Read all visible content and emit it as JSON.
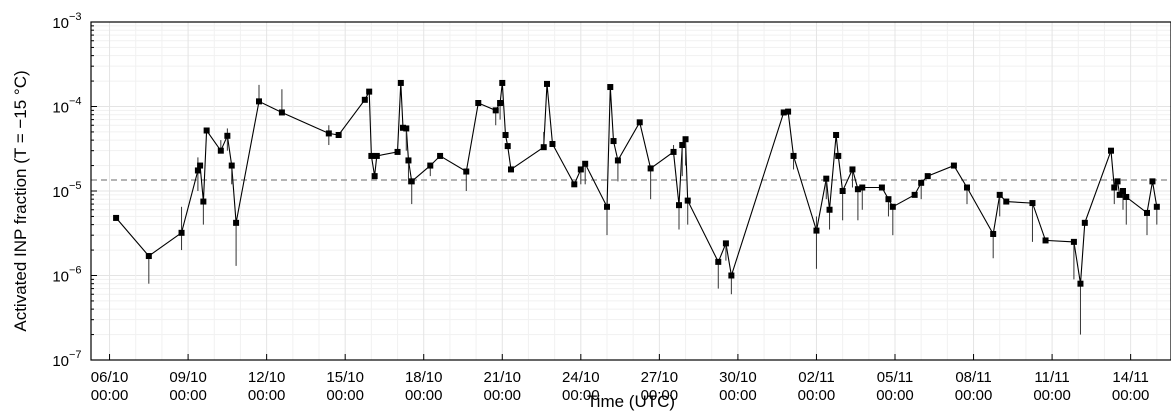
{
  "chart_data": {
    "type": "scatter",
    "xlabel": "Time (UTC)",
    "ylabel": "Activated INP fraction (T = −15 °C)",
    "y_scale": "log",
    "ylim": [
      1e-07,
      0.001
    ],
    "xlim": [
      "2021-10-05T07:00",
      "2021-11-15T13:00"
    ],
    "grid": true,
    "x_tick_labels": [
      {
        "date": "2021-10-06T00:00",
        "line1": "06/10",
        "line2": "00:00"
      },
      {
        "date": "2021-10-09T00:00",
        "line1": "09/10",
        "line2": "00:00"
      },
      {
        "date": "2021-10-12T00:00",
        "line1": "12/10",
        "line2": "00:00"
      },
      {
        "date": "2021-10-15T00:00",
        "line1": "15/10",
        "line2": "00:00"
      },
      {
        "date": "2021-10-18T00:00",
        "line1": "18/10",
        "line2": "00:00"
      },
      {
        "date": "2021-10-21T00:00",
        "line1": "21/10",
        "line2": "00:00"
      },
      {
        "date": "2021-10-24T00:00",
        "line1": "24/10",
        "line2": "00:00"
      },
      {
        "date": "2021-10-27T00:00",
        "line1": "27/10",
        "line2": "00:00"
      },
      {
        "date": "2021-10-30T00:00",
        "line1": "30/10",
        "line2": "00:00"
      },
      {
        "date": "2021-11-02T00:00",
        "line1": "02/11",
        "line2": "00:00"
      },
      {
        "date": "2021-11-05T00:00",
        "line1": "05/11",
        "line2": "00:00"
      },
      {
        "date": "2021-11-08T00:00",
        "line1": "08/11",
        "line2": "00:00"
      },
      {
        "date": "2021-11-11T00:00",
        "line1": "11/11",
        "line2": "00:00"
      },
      {
        "date": "2021-11-14T00:00",
        "line1": "14/11",
        "line2": "00:00"
      }
    ],
    "y_tick_labels": [
      {
        "value": 1e-07,
        "base": "10",
        "exp": "−7"
      },
      {
        "value": 1e-06,
        "base": "10",
        "exp": "−6"
      },
      {
        "value": 1e-05,
        "base": "10",
        "exp": "−5"
      },
      {
        "value": 0.0001,
        "base": "10",
        "exp": "−4"
      },
      {
        "value": 0.001,
        "base": "10",
        "exp": "−3"
      }
    ],
    "reference_line": {
      "y": 1.35e-05,
      "style": "dashed",
      "color": "#888888"
    },
    "series": [
      {
        "marker": "square",
        "color": "#000000",
        "points": [
          {
            "x": "2021-10-06T06:00",
            "y": 4.8e-06
          },
          {
            "x": "2021-10-07T12:00",
            "y": 1.7e-06,
            "lo": 8e-07
          },
          {
            "x": "2021-10-08T18:00",
            "y": 3.2e-06,
            "lo": 2e-06,
            "hi": 6.5e-06
          },
          {
            "x": "2021-10-09T09:00",
            "y": 1.75e-05,
            "lo": 1e-05,
            "hi": 2.5e-05
          },
          {
            "x": "2021-10-09T11:00",
            "y": 2e-05
          },
          {
            "x": "2021-10-09T14:00",
            "y": 7.5e-06,
            "lo": 4e-06
          },
          {
            "x": "2021-10-09T17:00",
            "y": 5.2e-05
          },
          {
            "x": "2021-10-10T06:00",
            "y": 3e-05,
            "hi": 4e-05
          },
          {
            "x": "2021-10-10T12:00",
            "y": 4.5e-05,
            "lo": 3e-05,
            "hi": 5.5e-05
          },
          {
            "x": "2021-10-10T16:00",
            "y": 2e-05,
            "lo": 1.2e-05
          },
          {
            "x": "2021-10-10T20:00",
            "y": 4.2e-06,
            "lo": 1.3e-06
          },
          {
            "x": "2021-10-11T17:00",
            "y": 0.000115,
            "hi": 0.00018
          },
          {
            "x": "2021-10-12T14:00",
            "y": 8.5e-05,
            "hi": 0.00016
          },
          {
            "x": "2021-10-14T09:00",
            "y": 4.8e-05,
            "lo": 3.5e-05,
            "hi": 6e-05
          },
          {
            "x": "2021-10-14T18:00",
            "y": 4.6e-05
          },
          {
            "x": "2021-10-15T18:00",
            "y": 0.00012
          },
          {
            "x": "2021-10-15T22:00",
            "y": 0.00015
          },
          {
            "x": "2021-10-16T00:00",
            "y": 2.6e-05
          },
          {
            "x": "2021-10-16T03:00",
            "y": 1.5e-05
          },
          {
            "x": "2021-10-16T05:00",
            "y": 2.6e-05
          },
          {
            "x": "2021-10-17T00:00",
            "y": 2.9e-05
          },
          {
            "x": "2021-10-17T03:00",
            "y": 0.00019
          },
          {
            "x": "2021-10-17T05:00",
            "y": 5.6e-05
          },
          {
            "x": "2021-10-17T08:00",
            "y": 5.5e-05,
            "lo": 3e-05
          },
          {
            "x": "2021-10-17T10:00",
            "y": 2.3e-05,
            "lo": 1.2e-05
          },
          {
            "x": "2021-10-17T13:00",
            "y": 1.3e-05,
            "lo": 7e-06
          },
          {
            "x": "2021-10-18T06:00",
            "y": 2e-05,
            "lo": 1.5e-05
          },
          {
            "x": "2021-10-18T15:00",
            "y": 2.6e-05
          },
          {
            "x": "2021-10-19T15:00",
            "y": 1.7e-05,
            "lo": 1e-05
          },
          {
            "x": "2021-10-20T02:00",
            "y": 0.00011
          },
          {
            "x": "2021-10-20T18:00",
            "y": 9e-05,
            "lo": 6e-05
          },
          {
            "x": "2021-10-20T22:00",
            "y": 0.00011,
            "lo": 7e-05
          },
          {
            "x": "2021-10-21T00:00",
            "y": 0.00019
          },
          {
            "x": "2021-10-21T03:00",
            "y": 4.6e-05
          },
          {
            "x": "2021-10-21T05:00",
            "y": 3.4e-05
          },
          {
            "x": "2021-10-21T08:00",
            "y": 1.8e-05
          },
          {
            "x": "2021-10-22T14:00",
            "y": 3.3e-05,
            "hi": 5e-05
          },
          {
            "x": "2021-10-22T17:00",
            "y": 0.000185
          },
          {
            "x": "2021-10-22T22:00",
            "y": 3.6e-05
          },
          {
            "x": "2021-10-23T18:00",
            "y": 1.2e-05
          },
          {
            "x": "2021-10-24T00:00",
            "y": 1.8e-05,
            "lo": 1.2e-05
          },
          {
            "x": "2021-10-24T04:00",
            "y": 2.1e-05,
            "lo": 1.2e-05
          },
          {
            "x": "2021-10-25T00:00",
            "y": 6.5e-06,
            "lo": 3e-06
          },
          {
            "x": "2021-10-25T03:00",
            "y": 0.00017
          },
          {
            "x": "2021-10-25T06:00",
            "y": 3.9e-05
          },
          {
            "x": "2021-10-25T10:00",
            "y": 2.3e-05,
            "lo": 1.3e-05
          },
          {
            "x": "2021-10-26T06:00",
            "y": 6.5e-05,
            "hi": 7e-05
          },
          {
            "x": "2021-10-26T16:00",
            "y": 1.85e-05,
            "lo": 8e-06
          },
          {
            "x": "2021-10-27T13:00",
            "y": 2.9e-05,
            "hi": 3.5e-05
          },
          {
            "x": "2021-10-27T18:00",
            "y": 6.8e-06,
            "lo": 3.5e-06
          },
          {
            "x": "2021-10-27T21:00",
            "y": 3.5e-05,
            "lo": 1.5e-05
          },
          {
            "x": "2021-10-28T00:00",
            "y": 4.1e-05,
            "lo": 2e-05
          },
          {
            "x": "2021-10-28T02:00",
            "y": 7.7e-06,
            "lo": 4e-06
          },
          {
            "x": "2021-10-29T06:00",
            "y": 1.45e-06,
            "lo": 7e-07
          },
          {
            "x": "2021-10-29T13:00",
            "y": 2.4e-06,
            "lo": 1.5e-06
          },
          {
            "x": "2021-10-29T18:00",
            "y": 1e-06,
            "lo": 6e-07
          },
          {
            "x": "2021-10-31T18:00",
            "y": 8.5e-05
          },
          {
            "x": "2021-10-31T22:00",
            "y": 8.7e-05
          },
          {
            "x": "2021-11-01T03:00",
            "y": 2.6e-05,
            "lo": 1.8e-05
          },
          {
            "x": "2021-11-02T00:00",
            "y": 3.4e-06,
            "lo": 1.2e-06,
            "hi": 5e-06
          },
          {
            "x": "2021-11-02T09:00",
            "y": 1.4e-05,
            "lo": 8e-06
          },
          {
            "x": "2021-11-02T12:00",
            "y": 6e-06,
            "lo": 3.5e-06
          },
          {
            "x": "2021-11-02T18:00",
            "y": 4.6e-05
          },
          {
            "x": "2021-11-02T20:00",
            "y": 2.6e-05
          },
          {
            "x": "2021-11-03T00:00",
            "y": 1e-05,
            "lo": 4.5e-06
          },
          {
            "x": "2021-11-03T09:00",
            "y": 1.8e-05,
            "lo": 1.1e-05
          },
          {
            "x": "2021-11-03T14:00",
            "y": 1.05e-05,
            "lo": 4.5e-06
          },
          {
            "x": "2021-11-03T18:00",
            "y": 1.1e-05,
            "lo": 6e-06
          },
          {
            "x": "2021-11-04T12:00",
            "y": 1.1e-05
          },
          {
            "x": "2021-11-04T18:00",
            "y": 8e-06,
            "lo": 5e-06
          },
          {
            "x": "2021-11-04T22:00",
            "y": 6.5e-06,
            "lo": 3e-06
          },
          {
            "x": "2021-11-05T18:00",
            "y": 9e-06
          },
          {
            "x": "2021-11-06T00:00",
            "y": 1.25e-05,
            "lo": 8e-06
          },
          {
            "x": "2021-11-06T06:00",
            "y": 1.5e-05
          },
          {
            "x": "2021-11-07T06:00",
            "y": 2e-05
          },
          {
            "x": "2021-11-07T18:00",
            "y": 1.1e-05,
            "lo": 7e-06
          },
          {
            "x": "2021-11-08T18:00",
            "y": 3.1e-06,
            "lo": 1.6e-06
          },
          {
            "x": "2021-11-09T00:00",
            "y": 9e-06,
            "lo": 5e-06
          },
          {
            "x": "2021-11-09T06:00",
            "y": 7.5e-06
          },
          {
            "x": "2021-11-10T06:00",
            "y": 7.2e-06,
            "lo": 2.5e-06
          },
          {
            "x": "2021-11-10T18:00",
            "y": 2.6e-06
          },
          {
            "x": "2021-11-11T20:00",
            "y": 2.5e-06,
            "lo": 9e-07
          },
          {
            "x": "2021-11-12T02:00",
            "y": 8e-07,
            "lo": 2e-07
          },
          {
            "x": "2021-11-12T06:00",
            "y": 4.2e-06
          },
          {
            "x": "2021-11-13T06:00",
            "y": 3e-05
          },
          {
            "x": "2021-11-13T09:00",
            "y": 1.1e-05,
            "lo": 7e-06
          },
          {
            "x": "2021-11-13T12:00",
            "y": 1.3e-05
          },
          {
            "x": "2021-11-13T14:00",
            "y": 9e-06
          },
          {
            "x": "2021-11-13T17:00",
            "y": 1e-05,
            "lo": 6e-06
          },
          {
            "x": "2021-11-13T20:00",
            "y": 8.5e-06,
            "lo": 4e-06
          },
          {
            "x": "2021-11-14T15:00",
            "y": 5.5e-06,
            "lo": 3e-06
          },
          {
            "x": "2021-11-14T20:00",
            "y": 1.3e-05
          },
          {
            "x": "2021-11-15T00:00",
            "y": 6.5e-06,
            "lo": 4e-06
          }
        ]
      }
    ]
  }
}
